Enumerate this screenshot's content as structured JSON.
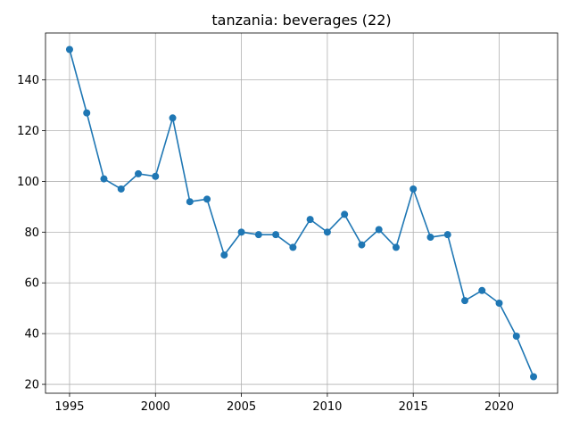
{
  "chart_data": {
    "type": "line",
    "title": "tanzania: beverages (22)",
    "xlabel": "",
    "ylabel": "",
    "grid": true,
    "xlim": [
      1993.6,
      2023.4
    ],
    "ylim": [
      16.5,
      158.5
    ],
    "x_ticks": [
      1995,
      2000,
      2005,
      2010,
      2015,
      2020
    ],
    "y_ticks": [
      20,
      40,
      60,
      80,
      100,
      120,
      140
    ],
    "series": [
      {
        "color": "#1f77b4",
        "marker": "circle",
        "x": [
          1995,
          1996,
          1997,
          1998,
          1999,
          2000,
          2001,
          2002,
          2003,
          2004,
          2005,
          2006,
          2007,
          2008,
          2009,
          2010,
          2011,
          2012,
          2013,
          2014,
          2015,
          2016,
          2017,
          2018,
          2019,
          2020,
          2021,
          2022
        ],
        "y": [
          152,
          127,
          101,
          97,
          103,
          102,
          125,
          92,
          93,
          71,
          80,
          79,
          79,
          74,
          85,
          80,
          87,
          75,
          81,
          74,
          97,
          78,
          79,
          53,
          57,
          52,
          39,
          23
        ]
      }
    ]
  }
}
